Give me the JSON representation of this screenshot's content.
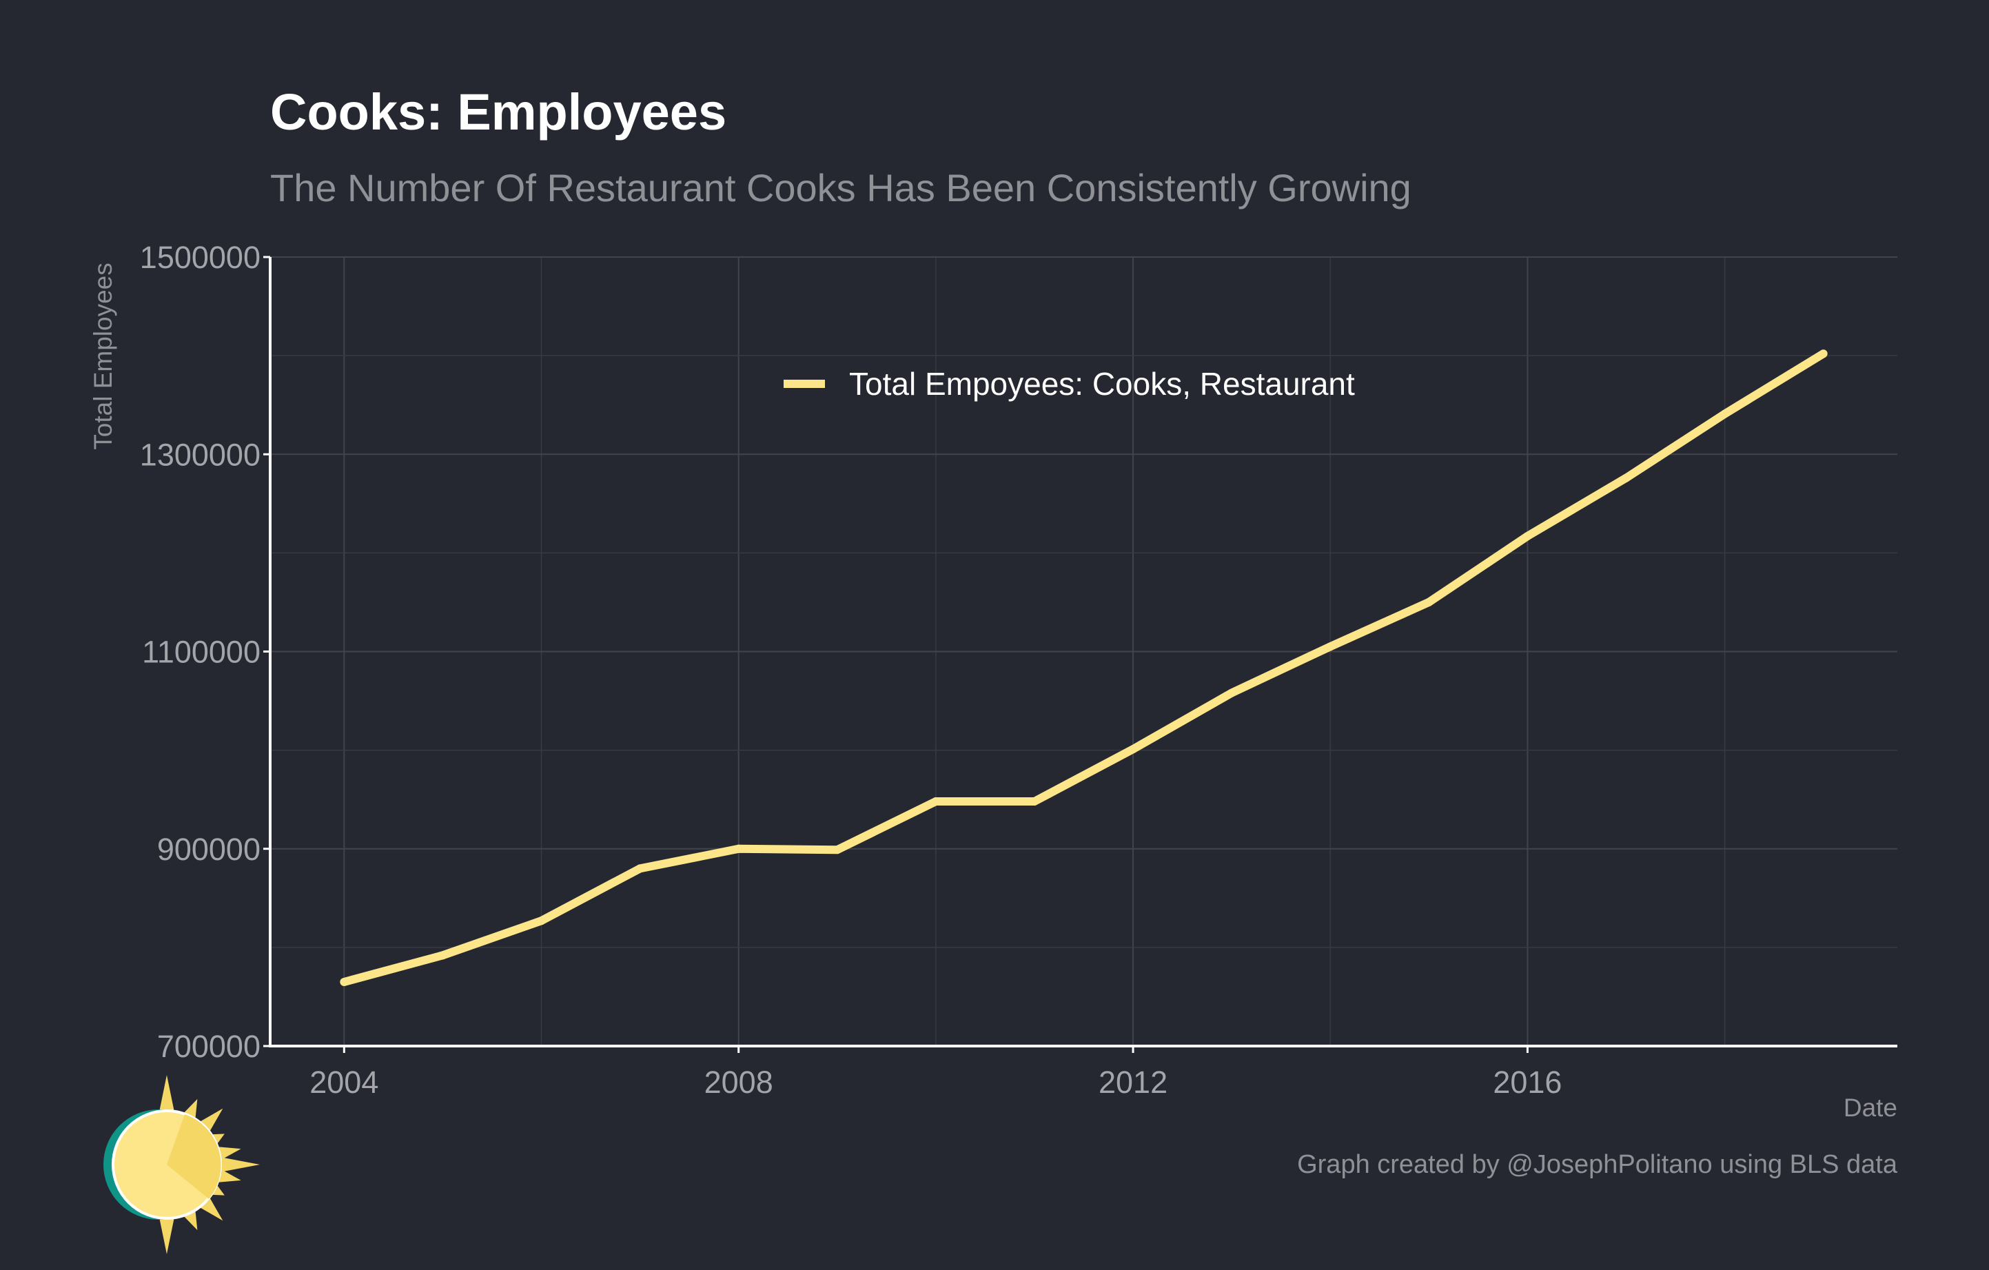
{
  "colors": {
    "background": "#252830",
    "series": "#fde68a",
    "title": "#ffffff",
    "subtitle": "#8f9196"
  },
  "chart_data": {
    "type": "line",
    "title": "Cooks: Employees",
    "subtitle": "The Number Of Restaurant Cooks Has Been Consistently Growing",
    "xlabel": "Date",
    "ylabel": "Total Employees",
    "xlim": [
      2003.25,
      2019.75
    ],
    "ylim": [
      700000,
      1500000
    ],
    "x_ticks": [
      2004,
      2008,
      2012,
      2016
    ],
    "y_ticks": [
      700000,
      900000,
      1100000,
      1300000,
      1500000
    ],
    "x_tick_labels": [
      "2004",
      "2008",
      "2012",
      "2016"
    ],
    "y_tick_labels": [
      "700000",
      "900000",
      "1100000",
      "1300000",
      "1500000"
    ],
    "grid": true,
    "legend_position": "top-center",
    "series": [
      {
        "name": "Total Empoyees: Cooks, Restaurant",
        "color": "#fde68a",
        "x": [
          2004,
          2005,
          2006,
          2007,
          2008,
          2009,
          2010,
          2011,
          2012,
          2013,
          2014,
          2015,
          2016,
          2017,
          2018,
          2019
        ],
        "y": [
          765000,
          792000,
          827000,
          880000,
          900000,
          899000,
          948000,
          948000,
          1001000,
          1058000,
          1105000,
          1150000,
          1217000,
          1276000,
          1341000,
          1402000
        ]
      }
    ],
    "caption": "Graph created by @JosephPolitano using BLS data"
  },
  "logo": {
    "name": "sun-logo-icon"
  }
}
